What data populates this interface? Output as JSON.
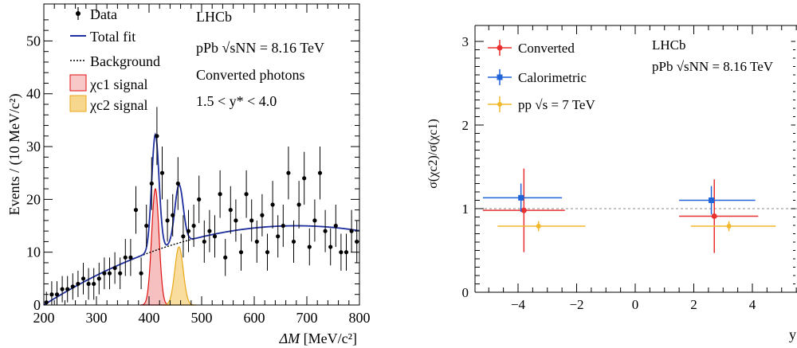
{
  "chart_data": [
    {
      "type": "scatter",
      "xlabel_main": "ΔM",
      "xlabel_unit": "[MeV/c²]",
      "ylabel": "Events / (10  MeV/c²)",
      "xlim": [
        200,
        800
      ],
      "ylim": [
        0,
        57
      ],
      "xticks": [
        "200",
        "300",
        "400",
        "500",
        "600",
        "700",
        "800"
      ],
      "yticks": [
        "0",
        "10",
        "20",
        "30",
        "40",
        "50"
      ],
      "legend": {
        "data": "Data",
        "total": "Total fit",
        "background": "Background",
        "chi_c1": "χc1 signal",
        "chi_c2": "χc2 signal"
      },
      "annotations": {
        "experiment": "LHCb",
        "system": "pPb",
        "energy": "√sNN = 8.16 TeV",
        "selection": "Converted photons",
        "range": "1.5 < y* < 4.0"
      },
      "colors": {
        "total": "#1f2f9f",
        "chi_c1": "#e01010",
        "chi_c2": "#e8a818"
      },
      "data_points": [
        {
          "x": 205,
          "y": 0.5,
          "e": 2.0
        },
        {
          "x": 215,
          "y": 2,
          "e": 2.5
        },
        {
          "x": 225,
          "y": 2,
          "e": 2.5
        },
        {
          "x": 235,
          "y": 3,
          "e": 2.5
        },
        {
          "x": 245,
          "y": 3,
          "e": 2.5
        },
        {
          "x": 255,
          "y": 3.5,
          "e": 2.5
        },
        {
          "x": 265,
          "y": 4,
          "e": 2.5
        },
        {
          "x": 275,
          "y": 5,
          "e": 3
        },
        {
          "x": 285,
          "y": 4,
          "e": 3
        },
        {
          "x": 295,
          "y": 4,
          "e": 3
        },
        {
          "x": 305,
          "y": 5,
          "e": 3
        },
        {
          "x": 315,
          "y": 6,
          "e": 3
        },
        {
          "x": 325,
          "y": 6,
          "e": 3
        },
        {
          "x": 335,
          "y": 7,
          "e": 3
        },
        {
          "x": 345,
          "y": 6,
          "e": 3
        },
        {
          "x": 355,
          "y": 9,
          "e": 3.5
        },
        {
          "x": 365,
          "y": 9,
          "e": 3.5
        },
        {
          "x": 375,
          "y": 18,
          "e": 4.5
        },
        {
          "x": 385,
          "y": 6,
          "e": 3
        },
        {
          "x": 395,
          "y": 15,
          "e": 4
        },
        {
          "x": 405,
          "y": 23,
          "e": 5
        },
        {
          "x": 415,
          "y": 32,
          "e": 5.5
        },
        {
          "x": 425,
          "y": 25,
          "e": 5
        },
        {
          "x": 435,
          "y": 16,
          "e": 4
        },
        {
          "x": 445,
          "y": 17,
          "e": 4
        },
        {
          "x": 455,
          "y": 23,
          "e": 5
        },
        {
          "x": 465,
          "y": 13,
          "e": 4
        },
        {
          "x": 475,
          "y": 14,
          "e": 4
        },
        {
          "x": 485,
          "y": 15,
          "e": 4
        },
        {
          "x": 495,
          "y": 20,
          "e": 4.5
        },
        {
          "x": 505,
          "y": 12,
          "e": 4
        },
        {
          "x": 515,
          "y": 14,
          "e": 4
        },
        {
          "x": 525,
          "y": 13,
          "e": 4
        },
        {
          "x": 535,
          "y": 21,
          "e": 4.5
        },
        {
          "x": 545,
          "y": 9,
          "e": 3.5
        },
        {
          "x": 555,
          "y": 18,
          "e": 4.5
        },
        {
          "x": 565,
          "y": 16,
          "e": 4
        },
        {
          "x": 575,
          "y": 10,
          "e": 3.5
        },
        {
          "x": 585,
          "y": 21,
          "e": 4.5
        },
        {
          "x": 595,
          "y": 16,
          "e": 4
        },
        {
          "x": 605,
          "y": 12,
          "e": 4
        },
        {
          "x": 615,
          "y": 17,
          "e": 4
        },
        {
          "x": 625,
          "y": 10,
          "e": 3.5
        },
        {
          "x": 635,
          "y": 19,
          "e": 4.5
        },
        {
          "x": 645,
          "y": 13,
          "e": 4
        },
        {
          "x": 655,
          "y": 15,
          "e": 4
        },
        {
          "x": 665,
          "y": 25,
          "e": 5
        },
        {
          "x": 675,
          "y": 12,
          "e": 4
        },
        {
          "x": 685,
          "y": 19,
          "e": 4.5
        },
        {
          "x": 695,
          "y": 24,
          "e": 5
        },
        {
          "x": 705,
          "y": 11,
          "e": 3.5
        },
        {
          "x": 715,
          "y": 16,
          "e": 4
        },
        {
          "x": 725,
          "y": 25,
          "e": 5
        },
        {
          "x": 735,
          "y": 14,
          "e": 4
        },
        {
          "x": 745,
          "y": 11,
          "e": 3.5
        },
        {
          "x": 755,
          "y": 15,
          "e": 4
        },
        {
          "x": 765,
          "y": 10,
          "e": 3.5
        },
        {
          "x": 775,
          "y": 10,
          "e": 3.5
        },
        {
          "x": 785,
          "y": 14,
          "e": 4
        },
        {
          "x": 795,
          "y": 12,
          "e": 4
        }
      ],
      "background_model": {
        "amplitude": 15,
        "peak": 680,
        "start": 200
      },
      "signals": [
        {
          "name": "chi_c1",
          "mean": 412,
          "sigma": 7,
          "amplitude": 22
        },
        {
          "name": "chi_c2",
          "mean": 457,
          "sigma": 8,
          "amplitude": 11
        }
      ]
    },
    {
      "type": "scatter",
      "ylabel": "σ(χc2)/σ(χc1)",
      "xlabel_cut": "y",
      "xlim": [
        -6,
        6.5
      ],
      "ylim": [
        0,
        3.1
      ],
      "xticks": [
        "−4",
        "−2",
        "0",
        "2",
        "4"
      ],
      "yticks": [
        "0",
        "1",
        "2",
        "3"
      ],
      "reference_line": 1,
      "legend": {
        "converted": "Converted",
        "calorimetric": "Calorimetric",
        "pp": "pp",
        "pp_energy": "√s = 7 TeV"
      },
      "annotations": {
        "experiment": "LHCb",
        "system": "pPb",
        "energy": "√sNN = 8.16 TeV"
      },
      "colors": {
        "converted": "#e8302e",
        "calorimetric": "#1f64d8",
        "pp": "#f0b82a"
      },
      "series": [
        {
          "name": "Converted",
          "color": "#e8302e",
          "points": [
            {
              "x": -3.8,
              "xlo": -5.2,
              "xhi": -2.4,
              "y": 0.98,
              "ylo": 0.48,
              "yhi": 1.48
            },
            {
              "x": 2.7,
              "xlo": 1.5,
              "xhi": 4.2,
              "y": 0.91,
              "ylo": 0.47,
              "yhi": 1.35
            }
          ]
        },
        {
          "name": "Calorimetric",
          "color": "#1f64d8",
          "points": [
            {
              "x": -3.9,
              "xlo": -5.2,
              "xhi": -2.5,
              "y": 1.13,
              "ylo": 0.96,
              "yhi": 1.3
            },
            {
              "x": 2.6,
              "xlo": 1.5,
              "xhi": 4.1,
              "y": 1.1,
              "ylo": 0.93,
              "yhi": 1.27
            }
          ]
        },
        {
          "name": "pp",
          "color": "#f0b82a",
          "points": [
            {
              "x": -3.3,
              "xlo": -4.7,
              "xhi": -1.7,
              "y": 0.79,
              "ylo": 0.73,
              "yhi": 0.85
            },
            {
              "x": 3.2,
              "xlo": 1.9,
              "xhi": 4.8,
              "y": 0.79,
              "ylo": 0.73,
              "yhi": 0.85
            }
          ]
        }
      ]
    }
  ]
}
